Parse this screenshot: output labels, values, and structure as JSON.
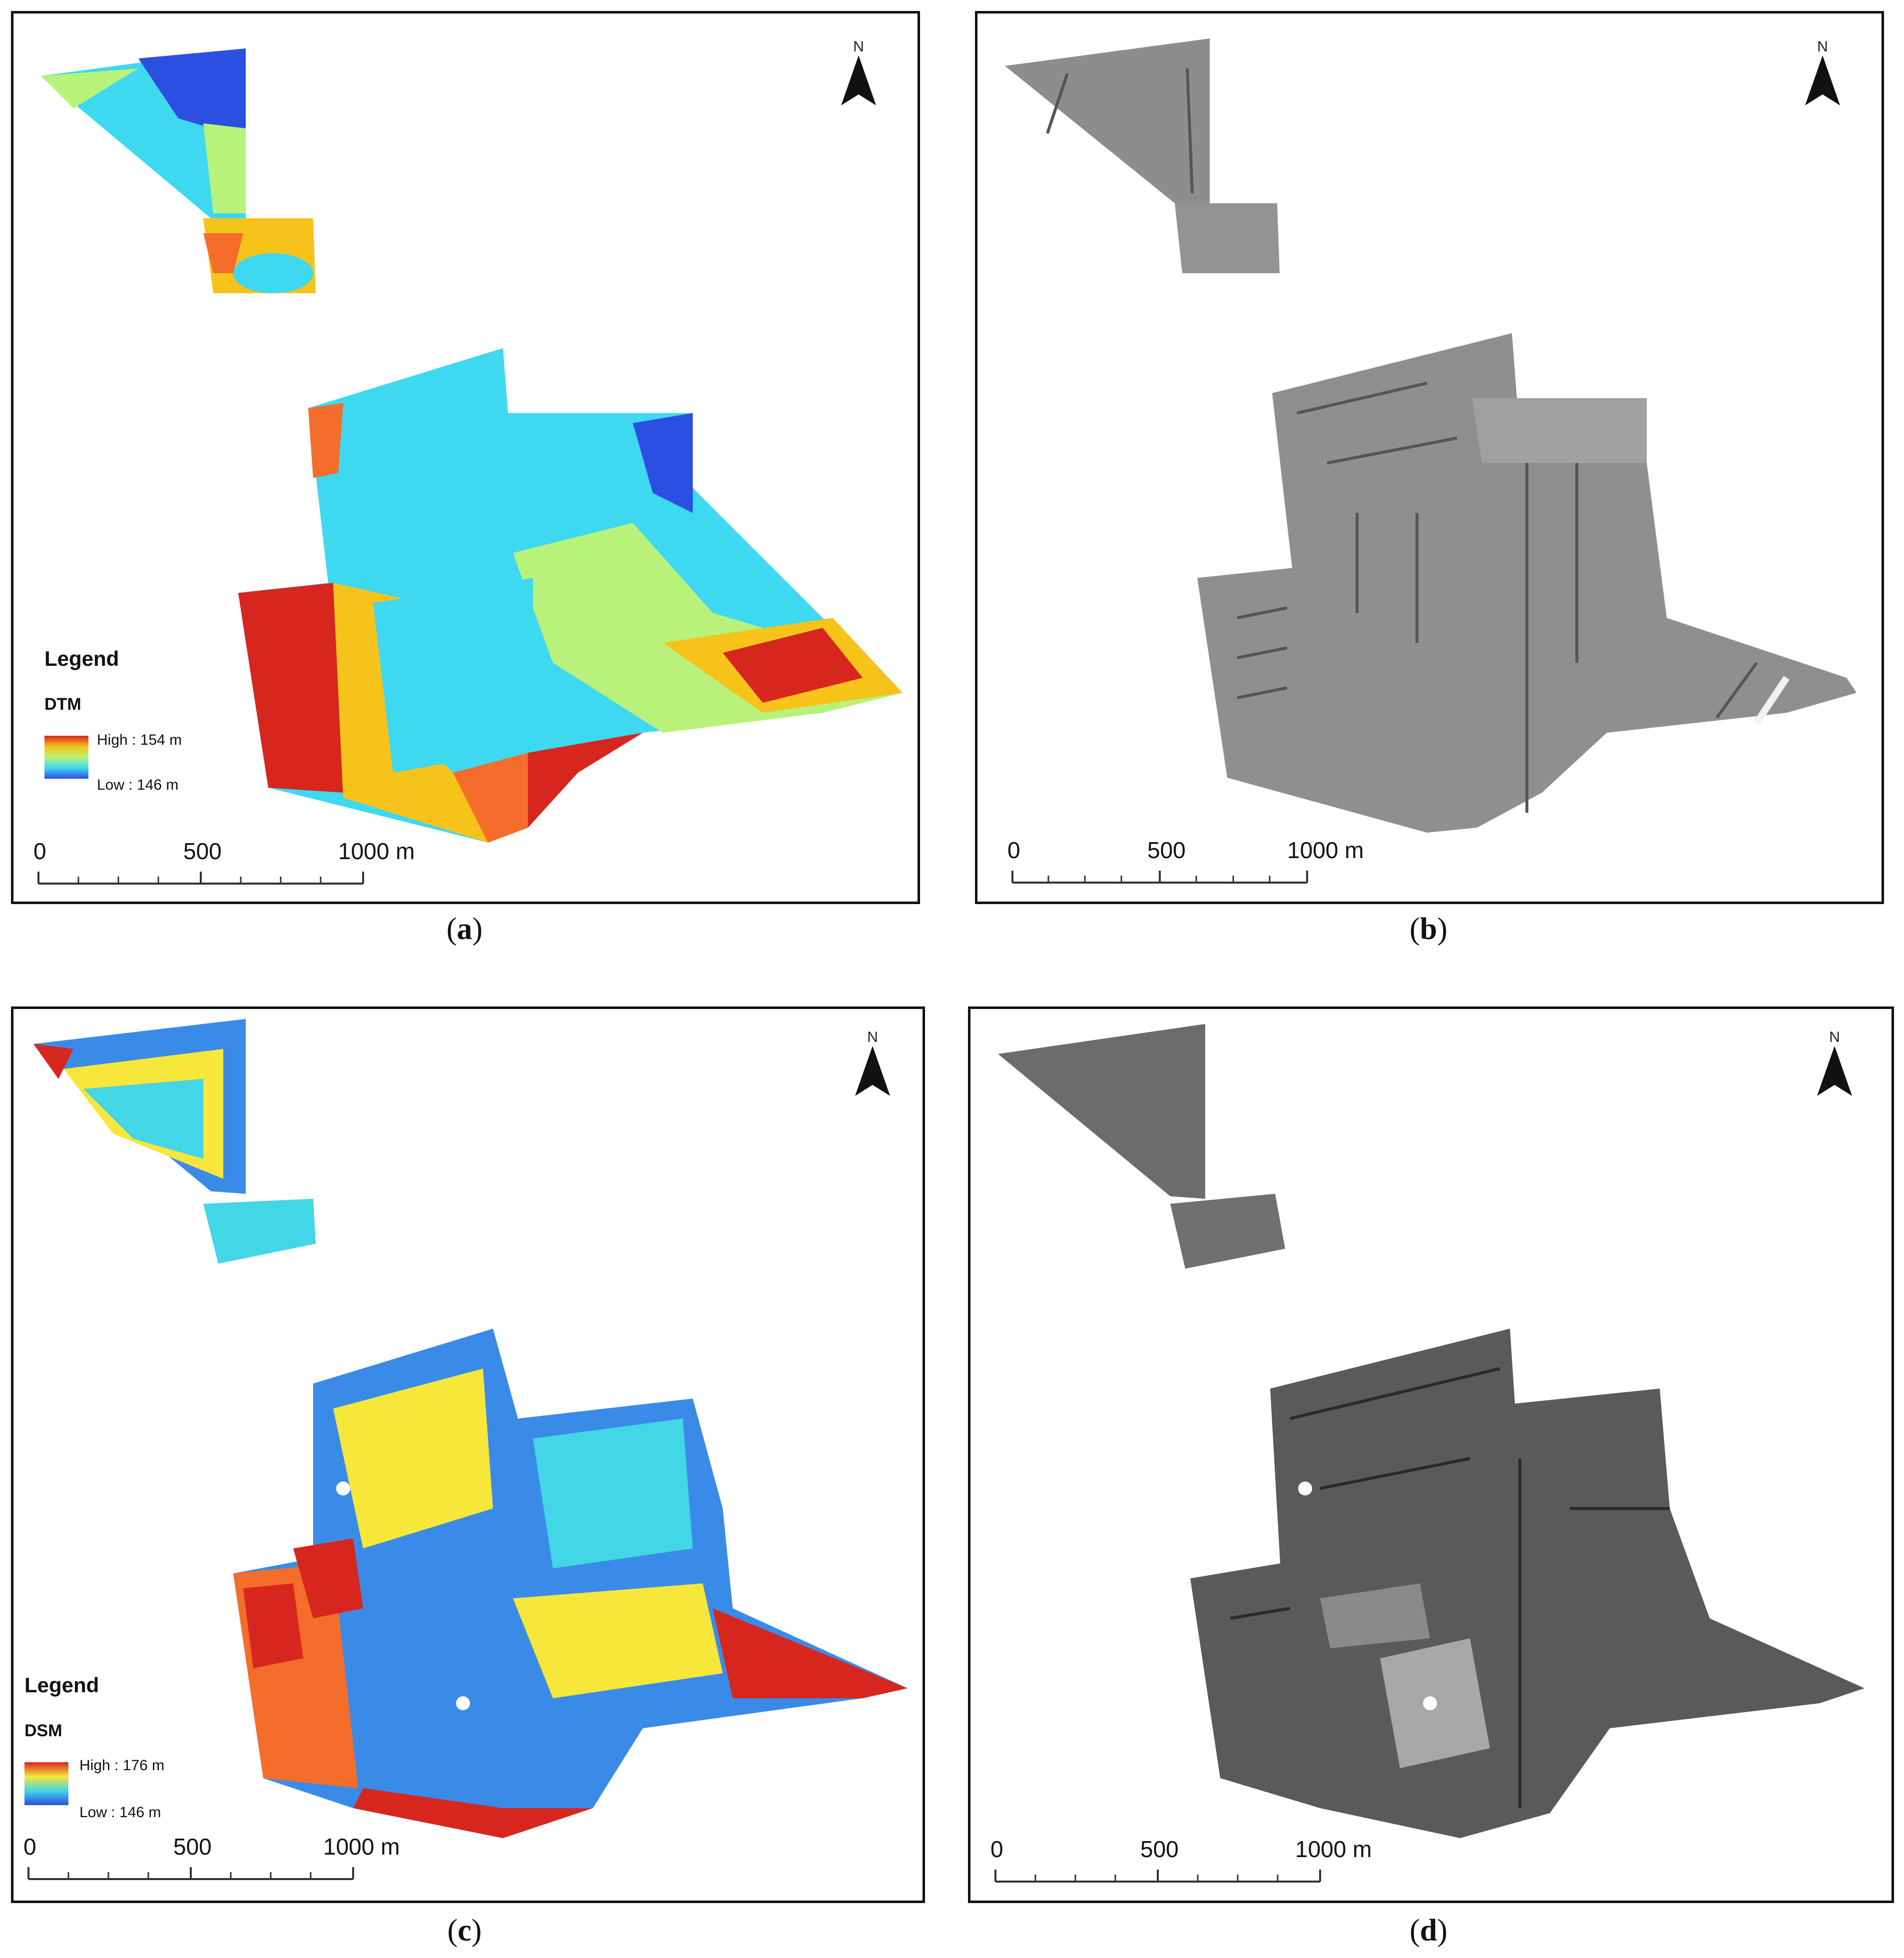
{
  "panels": {
    "a": {
      "caption_letter": "a",
      "legend_title": "Legend",
      "layer_name": "DTM",
      "high_label": "High : 154 m",
      "low_label": "Low : 146 m",
      "scale": [
        "0",
        "500",
        "1000 m"
      ],
      "north_label": "N",
      "colors": [
        "#d7261e",
        "#f46d2a",
        "#f6c31b",
        "#f2ee3a",
        "#b8f27a",
        "#3ed8f0",
        "#3aa0f0",
        "#2b4fe0"
      ]
    },
    "b": {
      "caption_letter": "b",
      "scale": [
        "0",
        "500",
        "1000 m"
      ],
      "north_label": "N",
      "colors": [
        "#8a8a8a",
        "#9b9b9b",
        "#6f6f6f"
      ]
    },
    "c": {
      "caption_letter": "c",
      "legend_title": "Legend",
      "layer_name": "DSM",
      "high_label": "High : 176 m",
      "low_label": "Low : 146 m",
      "scale": [
        "0",
        "500",
        "1000 m"
      ],
      "north_label": "N",
      "colors": [
        "#d7261e",
        "#f46d2a",
        "#f6e73a",
        "#42d6e6",
        "#3a8be8",
        "#2b4fe0"
      ]
    },
    "d": {
      "caption_letter": "d",
      "scale": [
        "0",
        "500",
        "1000 m"
      ],
      "north_label": "N",
      "colors": [
        "#3a3a3a",
        "#7a7a7a",
        "#b5b5b5"
      ]
    }
  }
}
